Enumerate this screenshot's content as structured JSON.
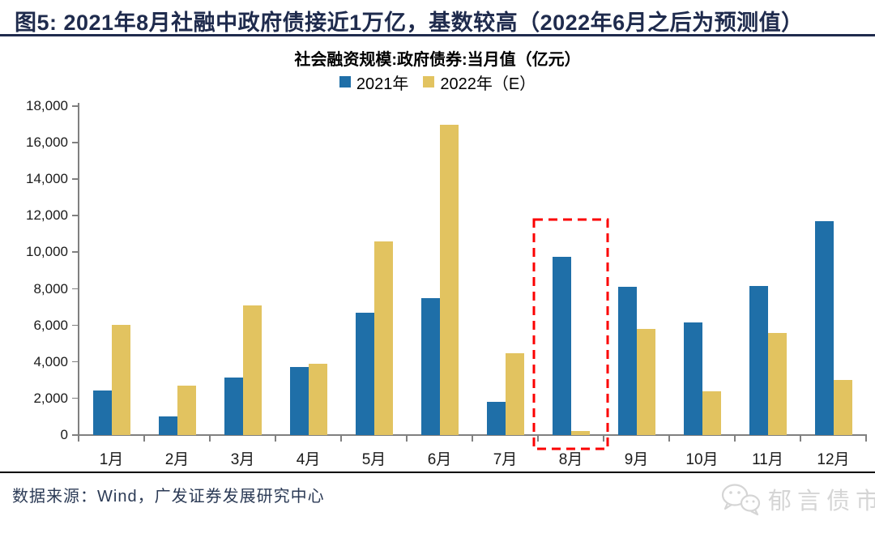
{
  "page": {
    "figure_title": "图5:  2021年8月社融中政府债接近1万亿，基数较高（2022年6月之后为预测值）",
    "footer_source": "数据来源：Wind，广发证券发展研究中心",
    "watermark_text": "郁言债市",
    "watermark_icon": "wechat-icon"
  },
  "colors": {
    "title_navy": "#1F2B4D",
    "series_2021_blue": "#1F6FA8",
    "series_2022_yellow": "#E2C360",
    "highlight_red": "#FB0000",
    "axis_gray": "#808080",
    "watermark_gray": "#D5D5D5"
  },
  "chart_data": {
    "type": "bar",
    "title": "社会融资规模:政府债券:当月值（亿元）",
    "categories": [
      "1月",
      "2月",
      "3月",
      "4月",
      "5月",
      "6月",
      "7月",
      "8月",
      "9月",
      "10月",
      "11月",
      "12月"
    ],
    "series": [
      {
        "name": "2021年",
        "color": "#1F6FA8",
        "values": [
          2437,
          1017,
          3130,
          3739,
          6701,
          7475,
          1820,
          9738,
          8109,
          6167,
          8158,
          11718
        ]
      },
      {
        "name": "2022年（E）",
        "color": "#E2C360",
        "values": [
          6026,
          2722,
          7074,
          3912,
          10582,
          17000,
          4500,
          200,
          5800,
          2400,
          5600,
          3000
        ]
      }
    ],
    "ylabel": "",
    "xlabel": "",
    "ylim": [
      0,
      18000
    ],
    "ytick_step": 2000,
    "grid": false,
    "legend_position": "top-center",
    "highlight": {
      "category": "8月",
      "category_index": 7,
      "style": "red-dashed-box"
    }
  }
}
